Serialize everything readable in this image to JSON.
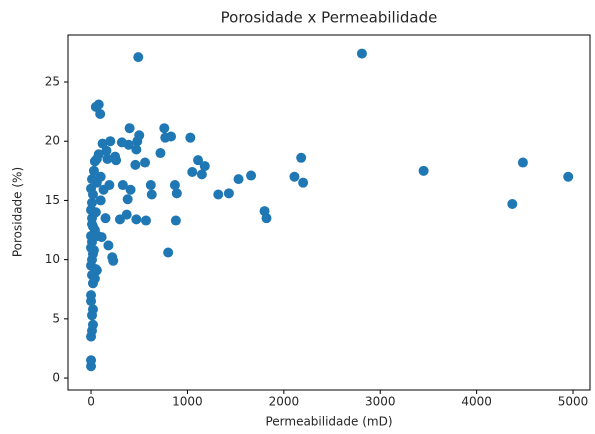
{
  "chart_data": {
    "type": "scatter",
    "title": "Porosidade x Permeabilidade",
    "x_label": "Permeabilidade (mD)",
    "y_label": "Porosidade (%)",
    "color": "#1f77b4",
    "xlim": [
      -239,
      5176
    ],
    "ylim": [
      -1.01,
      28.97
    ],
    "xticks": [
      0,
      1000,
      2000,
      3000,
      4000,
      5000
    ],
    "yticks": [
      0,
      5,
      10,
      15,
      20,
      25
    ],
    "x": [
      2810,
      490,
      80,
      50,
      95,
      4950,
      4480,
      4370,
      3450,
      2180,
      2200,
      2110,
      1800,
      1820,
      1660,
      1530,
      1430,
      1320,
      1180,
      1150,
      1110,
      1050,
      1030,
      890,
      870,
      880,
      800,
      770,
      760,
      830,
      720,
      620,
      630,
      570,
      560,
      500,
      480,
      470,
      460,
      470,
      400,
      390,
      410,
      380,
      370,
      330,
      300,
      320,
      250,
      260,
      200,
      190,
      160,
      150,
      180,
      220,
      230,
      170,
      120,
      100,
      100,
      110,
      130,
      60,
      60,
      50,
      60,
      70,
      80,
      40,
      0,
      0,
      0,
      10,
      20,
      10,
      20,
      0,
      0,
      20,
      10,
      0,
      10,
      20,
      0,
      10,
      0,
      20,
      10,
      0,
      10,
      20,
      0,
      10,
      30,
      40,
      10,
      30,
      40,
      50
    ],
    "y": [
      27.4,
      27.1,
      23.1,
      22.9,
      22.3,
      17.0,
      18.2,
      14.7,
      17.5,
      18.6,
      16.5,
      17.0,
      14.1,
      13.5,
      17.1,
      16.8,
      15.6,
      15.5,
      17.9,
      17.2,
      18.4,
      17.4,
      20.3,
      15.6,
      16.3,
      13.3,
      10.6,
      20.3,
      21.1,
      20.4,
      19.0,
      16.3,
      15.5,
      13.3,
      18.2,
      20.5,
      20.0,
      19.3,
      18.0,
      13.4,
      21.1,
      19.7,
      15.9,
      15.1,
      13.8,
      16.3,
      13.4,
      19.9,
      18.7,
      18.4,
      20.0,
      16.3,
      19.2,
      13.5,
      11.2,
      10.2,
      9.9,
      18.5,
      19.8,
      17.0,
      15.0,
      11.9,
      15.9,
      18.5,
      16.5,
      14.0,
      9.1,
      12.0,
      18.9,
      12.5,
      1.0,
      1.5,
      3.5,
      4.0,
      4.5,
      5.3,
      5.8,
      6.5,
      7.0,
      8.0,
      8.7,
      9.5,
      10.0,
      10.5,
      11.0,
      11.5,
      12.0,
      12.8,
      13.5,
      14.2,
      14.8,
      15.5,
      16.0,
      16.8,
      17.5,
      18.3,
      13.0,
      10.8,
      8.4,
      9.2
    ]
  }
}
